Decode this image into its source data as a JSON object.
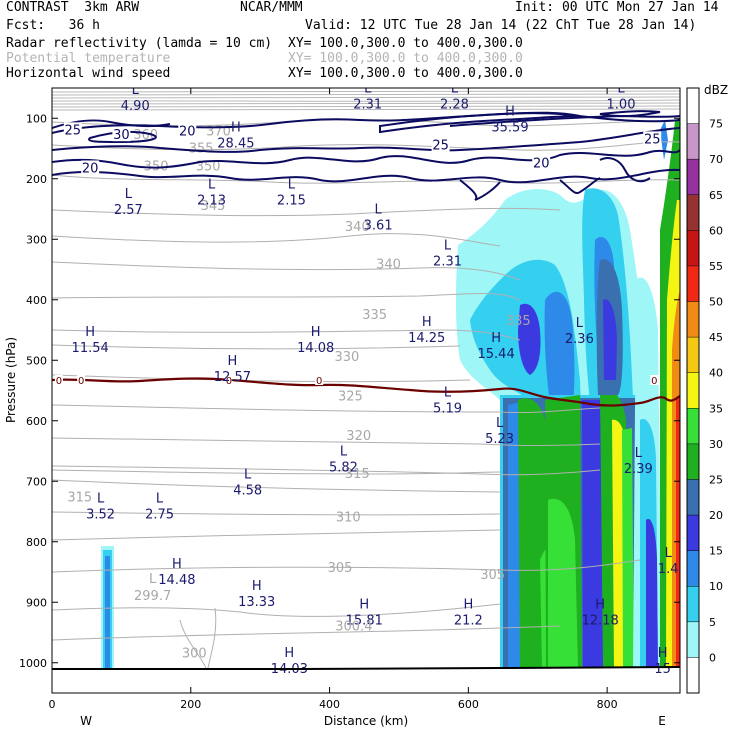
{
  "header": {
    "model": "CONTRAST  3km ARW",
    "org": "NCAR/MMM",
    "init": "Init: 00 UTC Mon 27 Jan 14",
    "fcst": "Fcst:   36 h",
    "valid": "Valid: 12 UTC Tue 28 Jan 14 (22 ChT Tue 28 Jan 14)",
    "field1": "Radar reflectivity (lamda = 10 cm)",
    "field1_xy": "XY= 100.0,300.0 to 400.0,300.0",
    "field2": "Potential temperature",
    "field2_xy": "XY= 100.0,300.0 to 400.0,300.0",
    "field3": "Horizontal wind speed",
    "field3_xy": "XY= 100.0,300.0 to 400.0,300.0"
  },
  "chart_data": {
    "type": "cross-section",
    "xlabel": "Distance (km)",
    "ylabel": "Pressure (hPa)",
    "xlim": [
      0,
      905
    ],
    "ylim": [
      1050,
      50
    ],
    "x_ticks": [
      0,
      200,
      400,
      600,
      800
    ],
    "y_ticks": [
      100,
      200,
      300,
      400,
      500,
      600,
      700,
      800,
      900,
      1000
    ],
    "west_label": "W",
    "east_label": "E",
    "colorbar": {
      "unit": "dBZ",
      "levels": [
        "0",
        "5",
        "10",
        "15",
        "20",
        "25",
        "30",
        "35",
        "40",
        "45",
        "50",
        "55",
        "60",
        "65",
        "70",
        "75"
      ],
      "colors": [
        "#ffffff",
        "#9ff6f6",
        "#35d0f0",
        "#2e8ae8",
        "#3a3ae0",
        "#3a6fb0",
        "#1fb01f",
        "#36e036",
        "#f5f514",
        "#f5c814",
        "#f08c14",
        "#f02814",
        "#c81414",
        "#963232",
        "#9632a0",
        "#c896c8",
        "#ffffff"
      ]
    },
    "freezing_level": {
      "label": "0",
      "color": "#6b0000"
    },
    "theta_labels": [
      {
        "x": 240,
        "p": 122,
        "text": "370"
      },
      {
        "x": 135,
        "p": 128,
        "text": "360"
      },
      {
        "x": 215,
        "p": 150,
        "text": "355"
      },
      {
        "x": 150,
        "p": 180,
        "text": "350"
      },
      {
        "x": 225,
        "p": 180,
        "text": "350"
      },
      {
        "x": 232,
        "p": 245,
        "text": "345"
      },
      {
        "x": 440,
        "p": 280,
        "text": "340"
      },
      {
        "x": 485,
        "p": 342,
        "text": "340"
      },
      {
        "x": 465,
        "p": 425,
        "text": "335"
      },
      {
        "x": 672,
        "p": 435,
        "text": "335"
      },
      {
        "x": 425,
        "p": 495,
        "text": "330"
      },
      {
        "x": 430,
        "p": 560,
        "text": "325"
      },
      {
        "x": 442,
        "p": 625,
        "text": "320"
      },
      {
        "x": 440,
        "p": 688,
        "text": "315"
      },
      {
        "x": 40,
        "p": 727,
        "text": "315"
      },
      {
        "x": 427,
        "p": 760,
        "text": "310"
      },
      {
        "x": 415,
        "p": 843,
        "text": "305"
      },
      {
        "x": 635,
        "p": 855,
        "text": "305"
      },
      {
        "x": 205,
        "p": 985,
        "text": "300"
      }
    ],
    "theta_extrema": [
      {
        "x": 145,
        "p": 890,
        "letter": "L",
        "value": "299.7"
      },
      {
        "x": 435,
        "p": 940,
        "letter": "",
        "value": "300.4"
      }
    ],
    "wind_contour_labels": [
      {
        "x": 30,
        "p": 120,
        "text": "25"
      },
      {
        "x": 100,
        "p": 128,
        "text": "30"
      },
      {
        "x": 195,
        "p": 122,
        "text": "20"
      },
      {
        "x": 560,
        "p": 145,
        "text": "25"
      },
      {
        "x": 865,
        "p": 135,
        "text": "25"
      },
      {
        "x": 55,
        "p": 183,
        "text": "20"
      },
      {
        "x": 705,
        "p": 175,
        "text": "20"
      }
    ],
    "wind_extrema": [
      {
        "x": 120,
        "p": 70,
        "letter": "L",
        "value": "4.90"
      },
      {
        "x": 455,
        "p": 67,
        "letter": "L",
        "value": "2.31"
      },
      {
        "x": 580,
        "p": 67,
        "letter": "L",
        "value": "2.28"
      },
      {
        "x": 820,
        "p": 67,
        "letter": "L",
        "value": "1.00"
      },
      {
        "x": 660,
        "p": 105,
        "letter": "H",
        "value": "35.59"
      },
      {
        "x": 265,
        "p": 132,
        "letter": "H",
        "value": "28.45"
      },
      {
        "x": 110,
        "p": 242,
        "letter": "L",
        "value": "2.57"
      },
      {
        "x": 230,
        "p": 226,
        "letter": "L",
        "value": "2.13"
      },
      {
        "x": 345,
        "p": 226,
        "letter": "L",
        "value": "2.15"
      },
      {
        "x": 470,
        "p": 267,
        "letter": "L",
        "value": "3.61"
      },
      {
        "x": 570,
        "p": 327,
        "letter": "L",
        "value": "2.31"
      },
      {
        "x": 55,
        "p": 470,
        "letter": "H",
        "value": "11.54"
      },
      {
        "x": 380,
        "p": 470,
        "letter": "H",
        "value": "14.08"
      },
      {
        "x": 540,
        "p": 453,
        "letter": "H",
        "value": "14.25"
      },
      {
        "x": 640,
        "p": 480,
        "letter": "H",
        "value": "15.44"
      },
      {
        "x": 760,
        "p": 455,
        "letter": "L",
        "value": "2.36"
      },
      {
        "x": 260,
        "p": 518,
        "letter": "H",
        "value": "12.57"
      },
      {
        "x": 570,
        "p": 570,
        "letter": "L",
        "value": "5.19"
      },
      {
        "x": 645,
        "p": 620,
        "letter": "L",
        "value": "5.23"
      },
      {
        "x": 420,
        "p": 667,
        "letter": "L",
        "value": "5.82"
      },
      {
        "x": 282,
        "p": 705,
        "letter": "L",
        "value": "4.58"
      },
      {
        "x": 70,
        "p": 745,
        "letter": "L",
        "value": "3.52"
      },
      {
        "x": 155,
        "p": 745,
        "letter": "L",
        "value": "2.75"
      },
      {
        "x": 845,
        "p": 670,
        "letter": "L",
        "value": "2.39"
      },
      {
        "x": 180,
        "p": 853,
        "letter": "H",
        "value": "14.48"
      },
      {
        "x": 295,
        "p": 890,
        "letter": "H",
        "value": "13.33"
      },
      {
        "x": 450,
        "p": 920,
        "letter": "H",
        "value": "15.81"
      },
      {
        "x": 600,
        "p": 920,
        "letter": "H",
        "value": "21.2"
      },
      {
        "x": 790,
        "p": 920,
        "letter": "H",
        "value": "12.18"
      },
      {
        "x": 342,
        "p": 1000,
        "letter": "H",
        "value": "14.03"
      },
      {
        "x": 888,
        "p": 835,
        "letter": "L",
        "value": "1.4"
      },
      {
        "x": 880,
        "p": 1000,
        "letter": "H",
        "value": "15"
      }
    ]
  }
}
